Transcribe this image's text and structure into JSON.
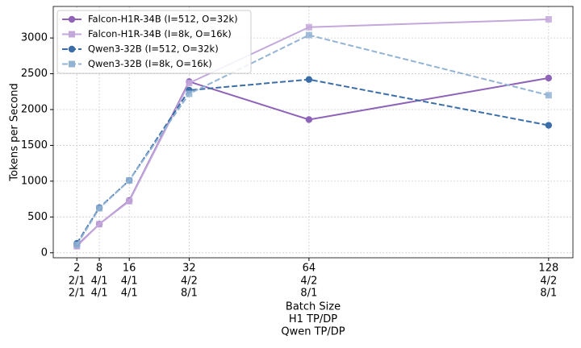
{
  "chart_data": {
    "type": "line",
    "x": [
      2,
      8,
      16,
      32,
      64,
      128
    ],
    "xticks": [
      2,
      8,
      16,
      32,
      64,
      128
    ],
    "x_tick_rows": [
      [
        "2/1",
        "4/1",
        "4/1",
        "4/2",
        "4/2",
        "4/2"
      ],
      [
        "2/1",
        "4/1",
        "4/1",
        "8/1",
        "8/1",
        "8/1"
      ]
    ],
    "xlabel": [
      "Batch Size",
      "H1 TP/DP",
      "Qwen TP/DP"
    ],
    "ylabel": "Tokens per Second",
    "xlim": [
      -4.3,
      134.5
    ],
    "ylim": [
      -70,
      3440
    ],
    "yticks": [
      0,
      500,
      1000,
      1500,
      2000,
      2500,
      3000
    ],
    "grid": true,
    "legend": "upper-left",
    "series": [
      {
        "name": "Falcon-H1R-34B (I=512, O=32k)",
        "color": "#8e63b8",
        "marker": "circle",
        "linestyle": "solid",
        "values": [
          100,
          400,
          730,
          2390,
          1860,
          2440
        ]
      },
      {
        "name": "Falcon-H1R-34B (I=8k, O=16k)",
        "color": "#c4a8dc",
        "marker": "square",
        "linestyle": "solid",
        "values": [
          90,
          400,
          720,
          2370,
          3150,
          3260
        ]
      },
      {
        "name": "Qwen3-32B (I=512, O=32k)",
        "color": "#3b6ea8",
        "marker": "circle",
        "linestyle": "dashed",
        "values": [
          130,
          630,
          1010,
          2270,
          2420,
          1780
        ]
      },
      {
        "name": "Qwen3-32B (I=8k, O=16k)",
        "color": "#93b3d5",
        "marker": "square",
        "linestyle": "dashed",
        "values": [
          110,
          620,
          1010,
          2220,
          3040,
          2200
        ]
      }
    ]
  }
}
